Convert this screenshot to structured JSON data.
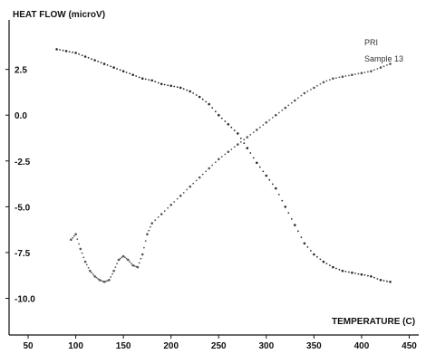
{
  "chart_data": {
    "type": "scatter",
    "title": "",
    "ylabel": "HEAT FLOW (microV)",
    "xlabel": "TEMPERATURE (C)",
    "xlim": [
      30,
      460
    ],
    "ylim": [
      -12.0,
      5.2
    ],
    "x_ticks": [
      50,
      100,
      150,
      200,
      250,
      300,
      350,
      400,
      450
    ],
    "y_ticks": [
      2.5,
      0.0,
      -2.5,
      -5.0,
      -7.5,
      -10.0
    ],
    "y_tick_labels": [
      "2.5",
      "0.0",
      "-2.5",
      "-5.0",
      "-7.5",
      "-10.0"
    ],
    "legend_position": "top-right",
    "grid": false,
    "series": [
      {
        "name": "PRI",
        "values": [
          {
            "x": 80,
            "y": 3.6
          },
          {
            "x": 90,
            "y": 3.5
          },
          {
            "x": 100,
            "y": 3.4
          },
          {
            "x": 110,
            "y": 3.2
          },
          {
            "x": 120,
            "y": 3.0
          },
          {
            "x": 130,
            "y": 2.8
          },
          {
            "x": 140,
            "y": 2.6
          },
          {
            "x": 150,
            "y": 2.4
          },
          {
            "x": 160,
            "y": 2.2
          },
          {
            "x": 170,
            "y": 2.0
          },
          {
            "x": 180,
            "y": 1.9
          },
          {
            "x": 190,
            "y": 1.7
          },
          {
            "x": 200,
            "y": 1.6
          },
          {
            "x": 210,
            "y": 1.5
          },
          {
            "x": 220,
            "y": 1.3
          },
          {
            "x": 230,
            "y": 1.0
          },
          {
            "x": 240,
            "y": 0.6
          },
          {
            "x": 250,
            "y": 0.0
          },
          {
            "x": 260,
            "y": -0.5
          },
          {
            "x": 270,
            "y": -1.0
          },
          {
            "x": 280,
            "y": -1.8
          },
          {
            "x": 290,
            "y": -2.6
          },
          {
            "x": 300,
            "y": -3.3
          },
          {
            "x": 310,
            "y": -4.0
          },
          {
            "x": 320,
            "y": -5.0
          },
          {
            "x": 330,
            "y": -6.0
          },
          {
            "x": 340,
            "y": -7.0
          },
          {
            "x": 350,
            "y": -7.6
          },
          {
            "x": 360,
            "y": -8.0
          },
          {
            "x": 370,
            "y": -8.3
          },
          {
            "x": 380,
            "y": -8.5
          },
          {
            "x": 390,
            "y": -8.6
          },
          {
            "x": 400,
            "y": -8.7
          },
          {
            "x": 410,
            "y": -8.8
          },
          {
            "x": 420,
            "y": -9.0
          },
          {
            "x": 430,
            "y": -9.1
          }
        ]
      },
      {
        "name": "Sample 13",
        "values": [
          {
            "x": 95,
            "y": -6.8
          },
          {
            "x": 100,
            "y": -6.5
          },
          {
            "x": 105,
            "y": -7.3
          },
          {
            "x": 110,
            "y": -8.0
          },
          {
            "x": 115,
            "y": -8.5
          },
          {
            "x": 120,
            "y": -8.8
          },
          {
            "x": 125,
            "y": -9.0
          },
          {
            "x": 130,
            "y": -9.1
          },
          {
            "x": 135,
            "y": -9.0
          },
          {
            "x": 140,
            "y": -8.5
          },
          {
            "x": 145,
            "y": -7.9
          },
          {
            "x": 150,
            "y": -7.7
          },
          {
            "x": 155,
            "y": -7.9
          },
          {
            "x": 160,
            "y": -8.2
          },
          {
            "x": 165,
            "y": -8.3
          },
          {
            "x": 170,
            "y": -7.6
          },
          {
            "x": 175,
            "y": -6.5
          },
          {
            "x": 180,
            "y": -5.9
          },
          {
            "x": 190,
            "y": -5.4
          },
          {
            "x": 200,
            "y": -4.9
          },
          {
            "x": 210,
            "y": -4.4
          },
          {
            "x": 220,
            "y": -3.9
          },
          {
            "x": 230,
            "y": -3.4
          },
          {
            "x": 240,
            "y": -2.9
          },
          {
            "x": 250,
            "y": -2.4
          },
          {
            "x": 260,
            "y": -2.0
          },
          {
            "x": 270,
            "y": -1.6
          },
          {
            "x": 280,
            "y": -1.2
          },
          {
            "x": 290,
            "y": -0.8
          },
          {
            "x": 300,
            "y": -0.4
          },
          {
            "x": 310,
            "y": 0.0
          },
          {
            "x": 320,
            "y": 0.4
          },
          {
            "x": 330,
            "y": 0.8
          },
          {
            "x": 340,
            "y": 1.2
          },
          {
            "x": 350,
            "y": 1.5
          },
          {
            "x": 360,
            "y": 1.8
          },
          {
            "x": 370,
            "y": 2.0
          },
          {
            "x": 380,
            "y": 2.1
          },
          {
            "x": 390,
            "y": 2.2
          },
          {
            "x": 400,
            "y": 2.3
          },
          {
            "x": 410,
            "y": 2.4
          },
          {
            "x": 420,
            "y": 2.6
          },
          {
            "x": 430,
            "y": 2.8
          }
        ]
      }
    ]
  },
  "colors": {
    "axis": "#111111",
    "text": "#111111",
    "series_pri": "#2a2a2a",
    "series_sample": "#555555"
  }
}
